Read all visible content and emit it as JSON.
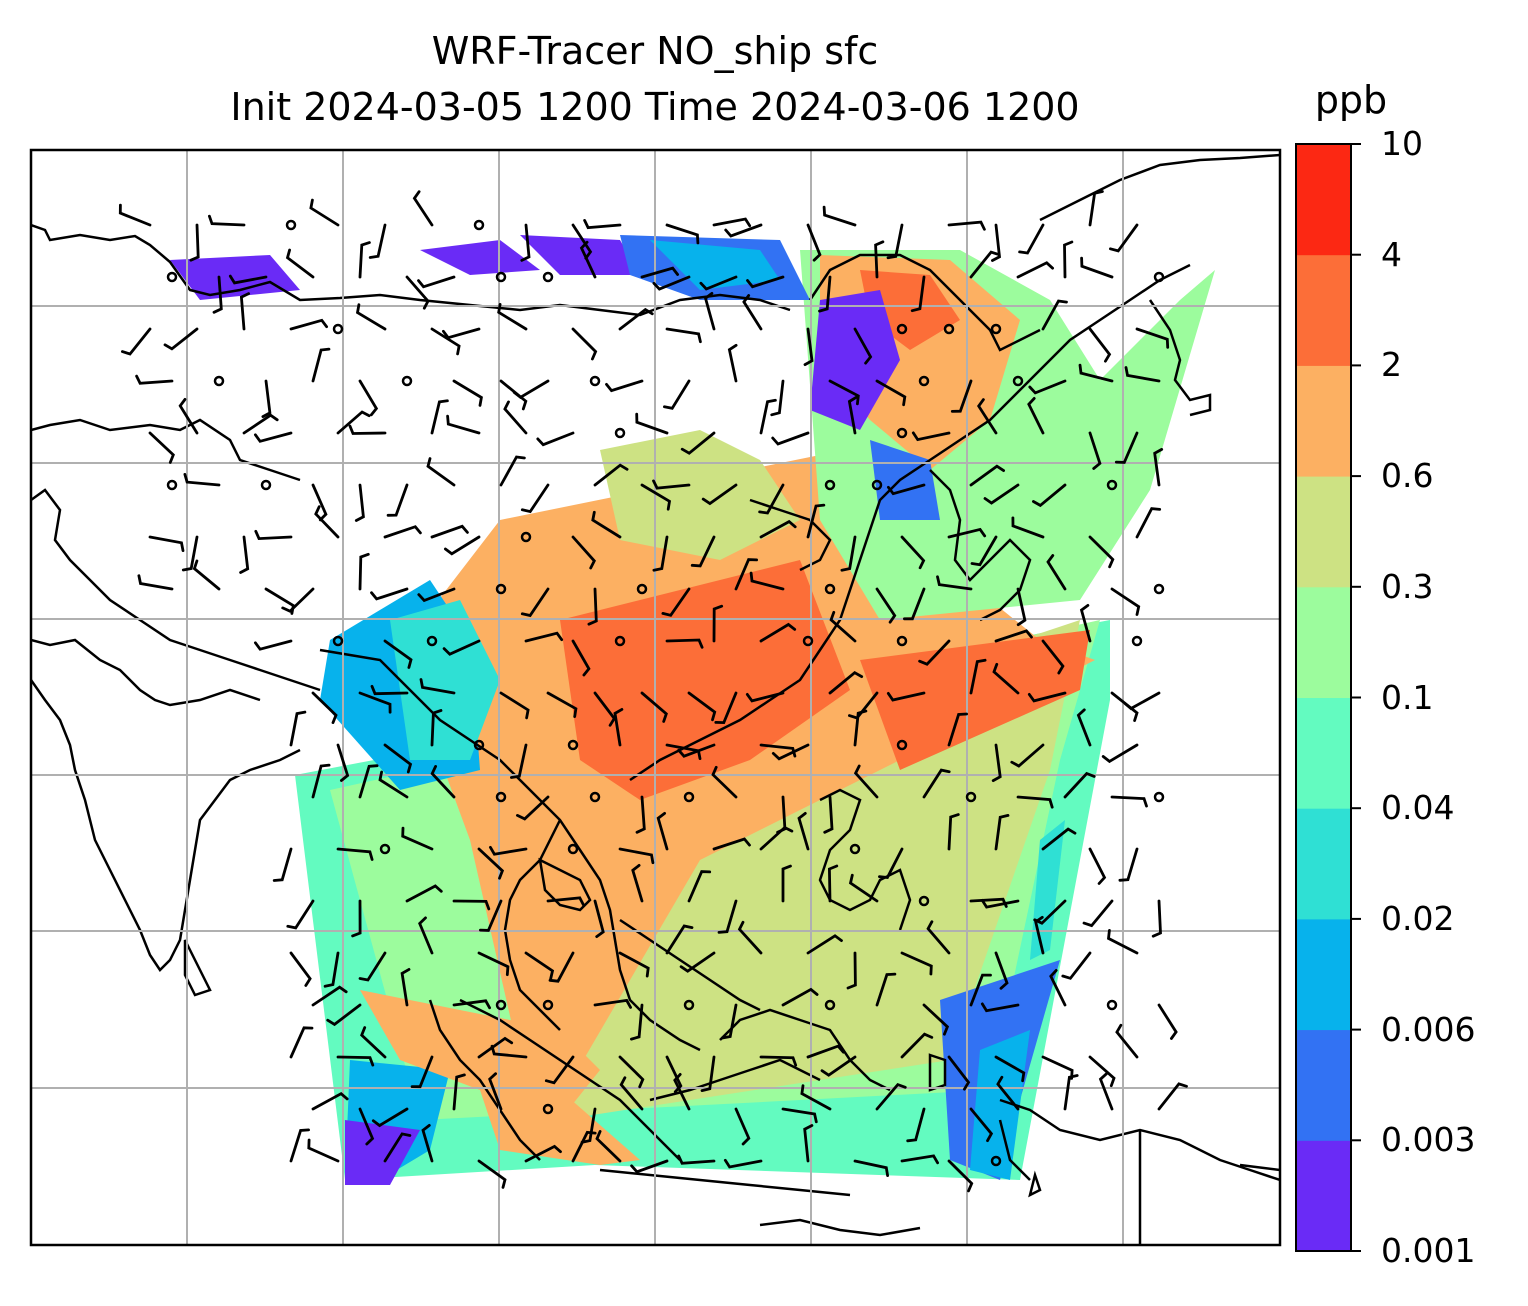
{
  "title_line1": "WRF-Tracer NO_ship sfc",
  "title_line2": "Init 2024-03-05 1200 Time 2024-03-06 1200",
  "colorbar": {
    "unit": "ppb",
    "levels": [
      "0.001",
      "0.003",
      "0.006",
      "0.02",
      "0.04",
      "0.1",
      "0.3",
      "0.6",
      "2",
      "4",
      "10"
    ],
    "colors": [
      "#6a2bf6",
      "#3272f3",
      "#07b2ec",
      "#2fe0d4",
      "#63fbc0",
      "#9cfc9d",
      "#cde283",
      "#fcb062",
      "#fc6e38",
      "#fc2813"
    ]
  },
  "map": {
    "gridlines": "on",
    "field": "NO_ship surface concentration",
    "overlay": "wind barbs"
  }
}
